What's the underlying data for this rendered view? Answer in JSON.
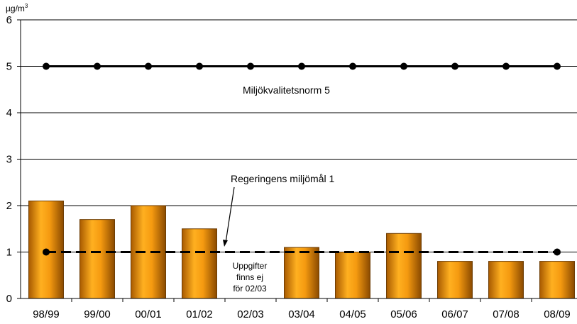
{
  "chart_data": {
    "type": "bar",
    "ylabel": "µg/m",
    "ylabel_sup": "3",
    "ylim": [
      0,
      6
    ],
    "yticks": [
      "0",
      "1",
      "2",
      "3",
      "4",
      "5",
      "6"
    ],
    "grid": true,
    "categories": [
      "98/99",
      "99/00",
      "00/01",
      "01/02",
      "02/03",
      "03/04",
      "04/05",
      "05/06",
      "06/07",
      "07/08",
      "08/09"
    ],
    "series": [
      {
        "values": [
          2.1,
          1.7,
          2.0,
          1.5,
          null,
          1.1,
          1.0,
          1.4,
          0.8,
          0.8,
          0.8
        ],
        "color": "#f0900a"
      }
    ],
    "reference_lines": [
      {
        "label": "Miljökvalitetsnorm 5",
        "value": 5,
        "style": "solid-with-markers"
      },
      {
        "label": "Regeringens miljömål 1",
        "value": 1,
        "style": "dashed",
        "end_markers": true
      }
    ],
    "annotations": {
      "missing_data_note": [
        "Uppgifter",
        "finns ej",
        "för 02/03"
      ]
    }
  }
}
